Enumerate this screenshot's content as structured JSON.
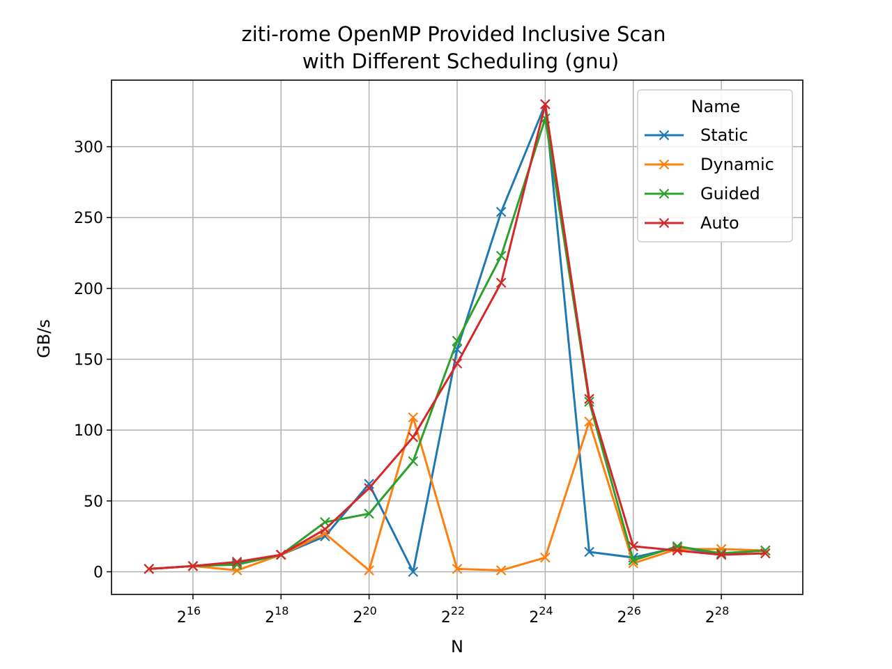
{
  "chart_data": {
    "type": "line",
    "title": "ziti-rome OpenMP Provided Inclusive Scan",
    "subtitle": "with Different Scheduling (gnu)",
    "xlabel": "N",
    "ylabel": "GB/s",
    "xscale": "log2",
    "x_exponents": [
      15,
      16,
      17,
      18,
      19,
      20,
      21,
      22,
      23,
      24,
      25,
      26,
      27,
      28,
      29
    ],
    "xlim_exp": [
      14.15,
      29.85
    ],
    "x_ticks": [
      {
        "base": "2",
        "exp": "16"
      },
      {
        "base": "2",
        "exp": "18"
      },
      {
        "base": "2",
        "exp": "20"
      },
      {
        "base": "2",
        "exp": "22"
      },
      {
        "base": "2",
        "exp": "24"
      },
      {
        "base": "2",
        "exp": "26"
      },
      {
        "base": "2",
        "exp": "28"
      }
    ],
    "ylim": [
      -16,
      347
    ],
    "y_ticks": [
      "0",
      "50",
      "100",
      "150",
      "200",
      "250",
      "300"
    ],
    "grid": true,
    "legend": {
      "title": "Name",
      "position": "top-right"
    },
    "series": [
      {
        "name": "Static",
        "color": "#1f77b4",
        "marker": "x",
        "values": [
          2,
          4,
          6,
          12,
          25,
          62,
          0,
          157,
          254,
          330,
          14,
          10,
          17,
          13,
          15
        ]
      },
      {
        "name": "Dynamic",
        "color": "#ff7f0e",
        "marker": "x",
        "values": [
          2,
          4,
          1,
          12,
          27,
          1,
          109,
          2,
          1,
          10,
          106,
          6,
          16,
          16,
          15
        ]
      },
      {
        "name": "Guided",
        "color": "#2ca02c",
        "marker": "x",
        "values": [
          2,
          4,
          5,
          12,
          35,
          41,
          78,
          163,
          223,
          320,
          120,
          8,
          18,
          13,
          15
        ]
      },
      {
        "name": "Auto",
        "color": "#d62728",
        "marker": "x",
        "values": [
          2,
          4,
          7,
          12,
          30,
          59,
          95,
          147,
          204,
          330,
          122,
          18,
          15,
          12,
          13
        ]
      }
    ]
  }
}
